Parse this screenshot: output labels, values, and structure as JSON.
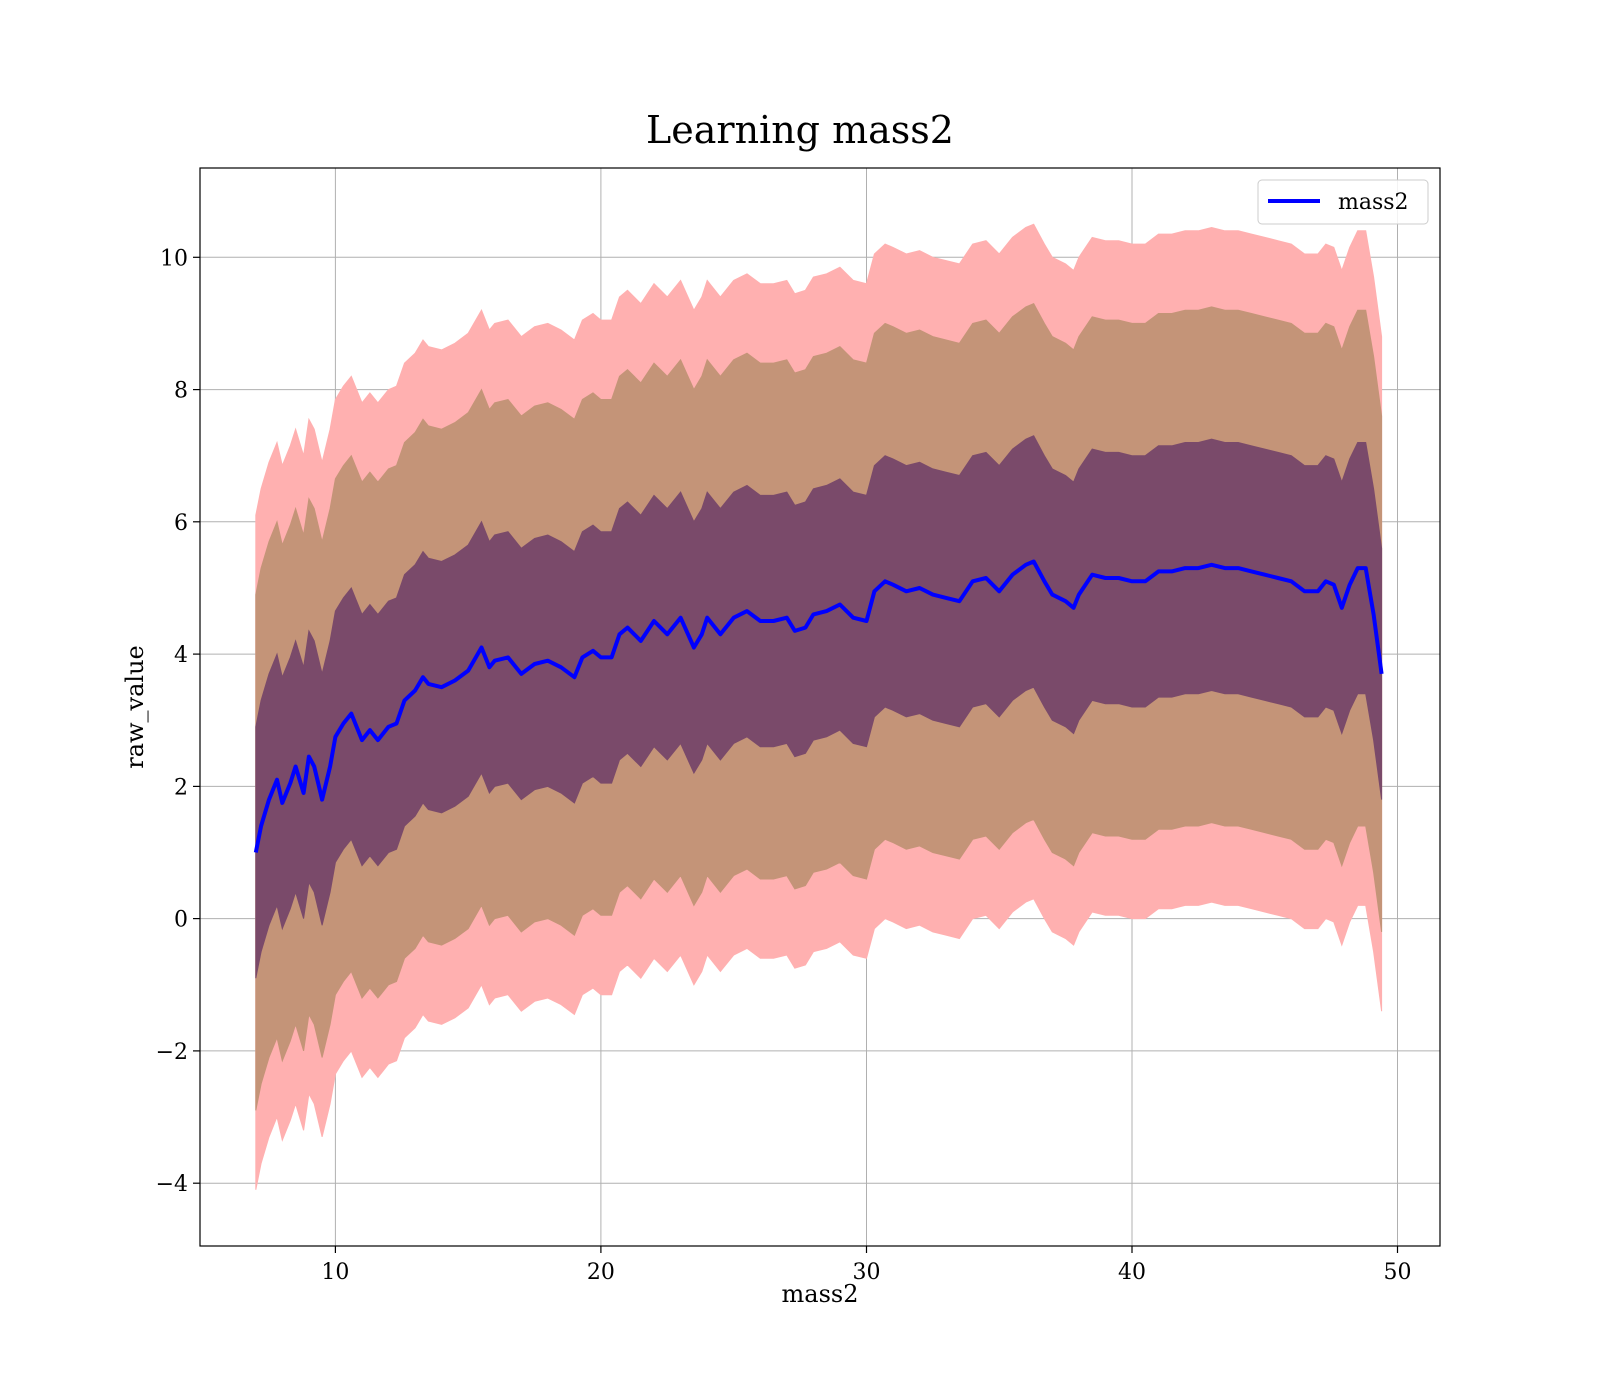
{
  "chart_data": {
    "type": "line",
    "title": "Learning mass2",
    "xlabel": "mass2",
    "ylabel": "raw_value",
    "xlim": [
      4.9,
      51.6
    ],
    "ylim": [
      -4.95,
      11.35
    ],
    "xticks": [
      10,
      20,
      30,
      40,
      50
    ],
    "yticks": [
      -4,
      -2,
      0,
      2,
      4,
      6,
      8,
      10
    ],
    "ytick_labels": [
      "−4",
      "−2",
      "0",
      "2",
      "4",
      "6",
      "8",
      "10"
    ],
    "grid": true,
    "legend": {
      "position": "top-right",
      "entries": [
        "mass2"
      ]
    },
    "series": [
      {
        "name": "mass2",
        "color": "#0000ff",
        "x": [
          7.0,
          7.2,
          7.5,
          7.8,
          8.0,
          8.3,
          8.5,
          8.8,
          9.0,
          9.2,
          9.5,
          9.8,
          10.0,
          10.3,
          10.6,
          11.0,
          11.3,
          11.6,
          12.0,
          12.3,
          12.6,
          13.0,
          13.3,
          13.5,
          14.0,
          14.5,
          15.0,
          15.5,
          15.8,
          16.0,
          16.5,
          17.0,
          17.5,
          18.0,
          18.5,
          19.0,
          19.3,
          19.7,
          20.0,
          20.4,
          20.7,
          21.0,
          21.5,
          22.0,
          22.5,
          23.0,
          23.5,
          23.8,
          24.0,
          24.5,
          25.0,
          25.5,
          26.0,
          26.5,
          27.0,
          27.3,
          27.7,
          28.0,
          28.5,
          29.0,
          29.5,
          30.0,
          30.3,
          30.7,
          31.0,
          31.5,
          32.0,
          32.5,
          33.0,
          33.5,
          34.0,
          34.5,
          35.0,
          35.5,
          36.0,
          36.3,
          36.7,
          37.0,
          37.5,
          37.8,
          38.0,
          38.5,
          39.0,
          39.5,
          40.0,
          40.5,
          41.0,
          41.5,
          42.0,
          42.5,
          43.0,
          43.5,
          44.0,
          44.5,
          45.0,
          45.5,
          46.0,
          46.5,
          47.0,
          47.3,
          47.6,
          47.9,
          48.2,
          48.5,
          48.8,
          49.1,
          49.4
        ],
        "mean": [
          1.0,
          1.4,
          1.8,
          2.1,
          1.75,
          2.05,
          2.3,
          1.9,
          2.45,
          2.3,
          1.8,
          2.3,
          2.75,
          2.95,
          3.1,
          2.7,
          2.85,
          2.7,
          2.9,
          2.95,
          3.3,
          3.45,
          3.65,
          3.55,
          3.5,
          3.6,
          3.75,
          4.1,
          3.8,
          3.9,
          3.95,
          3.7,
          3.85,
          3.9,
          3.8,
          3.65,
          3.95,
          4.05,
          3.95,
          3.95,
          4.3,
          4.4,
          4.2,
          4.5,
          4.3,
          4.55,
          4.1,
          4.3,
          4.55,
          4.3,
          4.55,
          4.65,
          4.5,
          4.5,
          4.55,
          4.35,
          4.4,
          4.6,
          4.65,
          4.75,
          4.55,
          4.5,
          4.95,
          5.1,
          5.05,
          4.95,
          5.0,
          4.9,
          4.85,
          4.8,
          5.1,
          5.15,
          4.95,
          5.2,
          5.35,
          5.4,
          5.1,
          4.9,
          4.8,
          4.7,
          4.9,
          5.2,
          5.15,
          5.15,
          5.1,
          5.1,
          5.25,
          5.25,
          5.3,
          5.3,
          5.35,
          5.3,
          5.3,
          5.25,
          5.2,
          5.15,
          5.1,
          4.95,
          4.95,
          5.1,
          5.05,
          4.7,
          5.05,
          5.3,
          5.3,
          4.6,
          3.7
        ],
        "band_half_widths": [
          1.9,
          3.9,
          5.1
        ],
        "band_colors": [
          "#7a4a6a",
          "#c49478",
          "#ffb0b0"
        ]
      }
    ]
  }
}
